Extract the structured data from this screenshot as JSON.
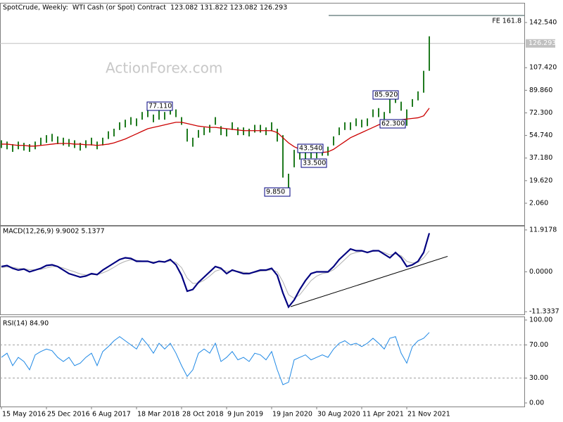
{
  "chart_data": [
    {
      "type": "range",
      "title": "SpotCrude, Weekly:  WTI Cash (or Spot) Contract  123.082 131.822 123.082 126.293",
      "watermark": "ActionForex.com",
      "categories": [
        "15 May 2016",
        null,
        null,
        null,
        null,
        null,
        null,
        null,
        "25 Dec 2016",
        null,
        null,
        null,
        null,
        null,
        null,
        null,
        "6 Aug 2017",
        null,
        null,
        null,
        null,
        null,
        null,
        null,
        "18 Mar 2018",
        null,
        null,
        null,
        null,
        null,
        null,
        null,
        "28 Oct 2018",
        null,
        null,
        null,
        null,
        null,
        null,
        null,
        "9 Jun 2019",
        null,
        null,
        null,
        null,
        null,
        null,
        null,
        "19 Jan 2020",
        null,
        null,
        null,
        null,
        null,
        null,
        null,
        "30 Aug 2020",
        null,
        null,
        null,
        null,
        null,
        null,
        null,
        "11 Apr 2021",
        null,
        null,
        null,
        null,
        null,
        null,
        null,
        "21 Nov 2021",
        null,
        null,
        null,
        null
      ],
      "high": [
        51,
        50,
        48,
        50,
        49,
        48,
        50,
        53,
        55,
        56,
        54,
        53,
        52,
        51,
        49,
        51,
        53,
        50,
        53,
        58,
        60,
        65,
        67,
        69,
        68,
        73,
        75,
        71,
        77.11,
        73,
        77,
        75,
        69,
        60,
        53,
        59,
        61,
        63,
        69,
        62,
        60,
        65,
        61,
        61,
        60,
        63,
        63,
        61,
        65,
        60,
        55,
        25,
        43.54,
        43,
        45,
        43,
        43,
        45,
        46,
        54,
        61,
        65,
        65,
        68,
        67,
        68,
        75,
        76,
        73,
        85.92,
        87,
        81,
        75,
        83,
        89,
        105,
        131.822
      ],
      "low": [
        45,
        44,
        42,
        44,
        43,
        42,
        44,
        47,
        49,
        50,
        48,
        47,
        46,
        45,
        43,
        45,
        47,
        44,
        47,
        52,
        54,
        59,
        61,
        63,
        62,
        67,
        69,
        65,
        67,
        67,
        71,
        69,
        63,
        50,
        46,
        53,
        55,
        57,
        63,
        55,
        54,
        59,
        55,
        55,
        54,
        57,
        57,
        55,
        58,
        50,
        22,
        9.85,
        30,
        36,
        33.5,
        37,
        37,
        39,
        39,
        47,
        55,
        59,
        59,
        62,
        61,
        62,
        69,
        69,
        67,
        72,
        80,
        74,
        62.3,
        77,
        82,
        88,
        105
      ],
      "color": "#1f7a1f",
      "ma_values": [
        48,
        48,
        47.5,
        47,
        47,
        46.5,
        46.5,
        47,
        47.5,
        48,
        48.5,
        48.5,
        48.5,
        48,
        48,
        47.5,
        47.5,
        47,
        47.5,
        48,
        49,
        50.5,
        52,
        54,
        56,
        58,
        60,
        61,
        62,
        63,
        64,
        65,
        65,
        64,
        63,
        62,
        61.5,
        61,
        61,
        60.5,
        60,
        59.5,
        59,
        58.5,
        58.5,
        58.5,
        58.5,
        58.5,
        58.5,
        57,
        53,
        49,
        46,
        44,
        43,
        42,
        41.5,
        41.5,
        42,
        44,
        47,
        50,
        53,
        55,
        57,
        59,
        61,
        63,
        64.5,
        65.5,
        66.5,
        67,
        67.5,
        68,
        68.5,
        70,
        76
      ],
      "ma_color": "#cc0000",
      "last_price": 126.293,
      "levels": [
        {
          "label": "FE 161.8",
          "value": 148
        }
      ],
      "annotations": [
        "77.110",
        "85.920",
        "43.540",
        "33.500",
        "9.850",
        "62.300"
      ],
      "ylim": [
        -14.9,
        157.3
      ],
      "yticks": [
        {
          "value": 142.54,
          "label": "142.540"
        },
        {
          "value": 107.42,
          "label": "107.420"
        },
        {
          "value": 89.86,
          "label": "89.860"
        },
        {
          "value": 72.3,
          "label": "72.300"
        },
        {
          "value": 54.74,
          "label": "54.740"
        },
        {
          "value": 37.18,
          "label": "37.180"
        },
        {
          "value": 19.62,
          "label": "19.620"
        },
        {
          "value": 2.06,
          "label": "2.060"
        }
      ]
    },
    {
      "type": "line",
      "title": "MACD(12,26,9) 9.9002 5.1377",
      "series": [
        {
          "color": "#000080",
          "values": [
            1.5,
            1.8,
            1,
            0.5,
            0.8,
            0,
            0.5,
            1,
            1.8,
            2,
            1.5,
            0.5,
            -0.5,
            -1,
            -1.5,
            -1.2,
            -0.5,
            -0.8,
            0.5,
            1.5,
            2.5,
            3.5,
            4,
            3.8,
            3,
            3,
            3,
            2.5,
            3,
            2.8,
            3.5,
            2,
            -1,
            -5.5,
            -5,
            -3,
            -1.5,
            0,
            1.5,
            1,
            -0.5,
            0.5,
            0,
            -0.5,
            -0.5,
            0,
            0.5,
            0.5,
            1,
            -1,
            -6,
            -10,
            -8,
            -5,
            -2.5,
            -0.5,
            0,
            0,
            0,
            1.5,
            3.5,
            5,
            6.5,
            6,
            6,
            5.5,
            6,
            6,
            5,
            4,
            5.5,
            4,
            1.5,
            2,
            3,
            5.5,
            11
          ]
        },
        {
          "color": "#b0b0b0",
          "values": [
            1.2,
            1.4,
            1.3,
            1,
            0.9,
            0.6,
            0.6,
            0.7,
            1.1,
            1.5,
            1.5,
            1.1,
            0.5,
            0,
            -0.6,
            -0.9,
            -0.8,
            -0.8,
            -0.3,
            0.4,
            1.3,
            2.3,
            3,
            3.4,
            3.3,
            3.1,
            3,
            2.8,
            2.9,
            2.8,
            3.1,
            2.7,
            1.2,
            -1.8,
            -3.3,
            -3.2,
            -2.4,
            -1.2,
            0.2,
            0.7,
            0.2,
            0.3,
            0.2,
            -0.1,
            -0.3,
            -0.2,
            0.2,
            0.3,
            0.6,
            0,
            -2.8,
            -6.5,
            -7.5,
            -6.5,
            -4.5,
            -2.5,
            -1.2,
            -0.5,
            -0.2,
            0.6,
            2,
            3.5,
            5,
            5.5,
            5.8,
            5.7,
            5.8,
            6,
            5.5,
            4.8,
            5.1,
            4.6,
            3,
            2.5,
            2.7,
            4,
            6
          ]
        }
      ],
      "trendline": [
        -9.9,
        4.4
      ],
      "ylim": [
        -12.1,
        12.9
      ],
      "yticks": [
        {
          "value": 11.9178,
          "label": "11.9178"
        },
        {
          "value": 0,
          "label": "0.0000"
        },
        {
          "value": -11.3337,
          "label": "-11.3337"
        }
      ]
    },
    {
      "type": "line",
      "title": "RSI(14) 84.90",
      "series": [
        {
          "color": "#1e88e5",
          "values": [
            55,
            60,
            45,
            55,
            50,
            40,
            58,
            62,
            65,
            63,
            55,
            50,
            55,
            45,
            48,
            55,
            60,
            45,
            62,
            68,
            75,
            80,
            75,
            70,
            65,
            78,
            70,
            60,
            72,
            65,
            72,
            60,
            45,
            32,
            40,
            60,
            65,
            60,
            72,
            50,
            55,
            62,
            52,
            55,
            50,
            60,
            58,
            52,
            62,
            40,
            22,
            25,
            52,
            55,
            58,
            52,
            55,
            58,
            55,
            65,
            72,
            75,
            70,
            72,
            68,
            72,
            78,
            72,
            65,
            78,
            80,
            60,
            48,
            68,
            75,
            78,
            85
          ]
        }
      ],
      "dashed_levels": [
        70,
        30
      ],
      "ylim": [
        -4.3,
        103.4
      ],
      "yticks": [
        {
          "value": 100,
          "label": "100.00"
        },
        {
          "value": 70,
          "label": "70.00"
        },
        {
          "value": 30,
          "label": "30.00"
        },
        {
          "value": 0,
          "label": "0.00"
        }
      ]
    }
  ]
}
